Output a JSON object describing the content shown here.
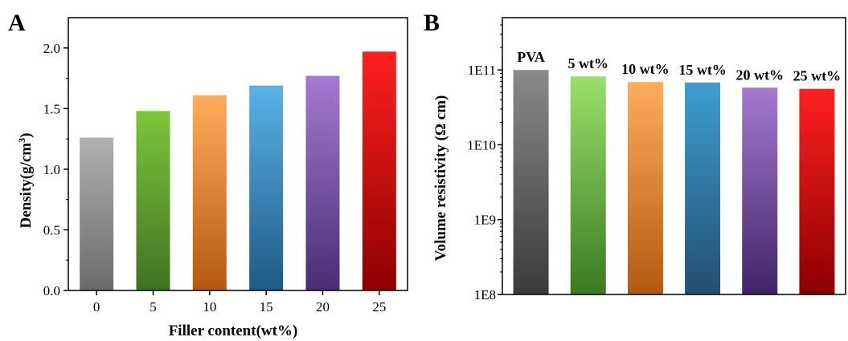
{
  "chart_data": [
    {
      "panel": "A",
      "type": "bar",
      "categories": [
        "0",
        "5",
        "10",
        "15",
        "20",
        "25"
      ],
      "values": [
        1.26,
        1.48,
        1.61,
        1.69,
        1.77,
        1.97
      ],
      "xlabel": "Filler content(wt%)",
      "ylabel": "Density(g/cm",
      "ylabel_sup": "3",
      "ylabel_close": ")",
      "ylim": [
        0,
        2.25
      ],
      "yticks": [
        "0.0",
        "0.5",
        "1.0",
        "1.5",
        "2.0"
      ],
      "ytick_values": [
        0,
        0.5,
        1.0,
        1.5,
        2.0
      ],
      "bar_colors": [
        [
          "#b0b0b0",
          "#6b6b6b"
        ],
        [
          "#7cc63a",
          "#3f7324"
        ],
        [
          "#ffac5c",
          "#b35a10"
        ],
        [
          "#5ab2e8",
          "#1e5a84"
        ],
        [
          "#a57ad2",
          "#4a2d72"
        ],
        [
          "#ff2020",
          "#8c0000"
        ]
      ]
    },
    {
      "panel": "B",
      "type": "bar",
      "categories": [
        "PVA",
        "5 wt%",
        "10 wt%",
        "15 wt%",
        "20 wt%",
        "25 wt%"
      ],
      "values": [
        100000000000.0,
        82000000000.0,
        69000000000.0,
        68000000000.0,
        58000000000.0,
        56000000000.0
      ],
      "yscale": "log",
      "ylabel": "Volume resistivity (Ω cm)",
      "ylim": [
        100000000.0,
        500000000000.0
      ],
      "yticks": [
        "1E8",
        "1E9",
        "1E10",
        "1E11"
      ],
      "ytick_values": [
        100000000.0,
        1000000000.0,
        10000000000.0,
        100000000000.0
      ],
      "bar_colors": [
        [
          "#8a8a8a",
          "#3a3a3a"
        ],
        [
          "#9be06a",
          "#3a7a22"
        ],
        [
          "#ffac5c",
          "#b35a10"
        ],
        [
          "#3d9ed2",
          "#234f70"
        ],
        [
          "#a57ad2",
          "#3e2566"
        ],
        [
          "#ff2020",
          "#8c0000"
        ]
      ]
    }
  ]
}
